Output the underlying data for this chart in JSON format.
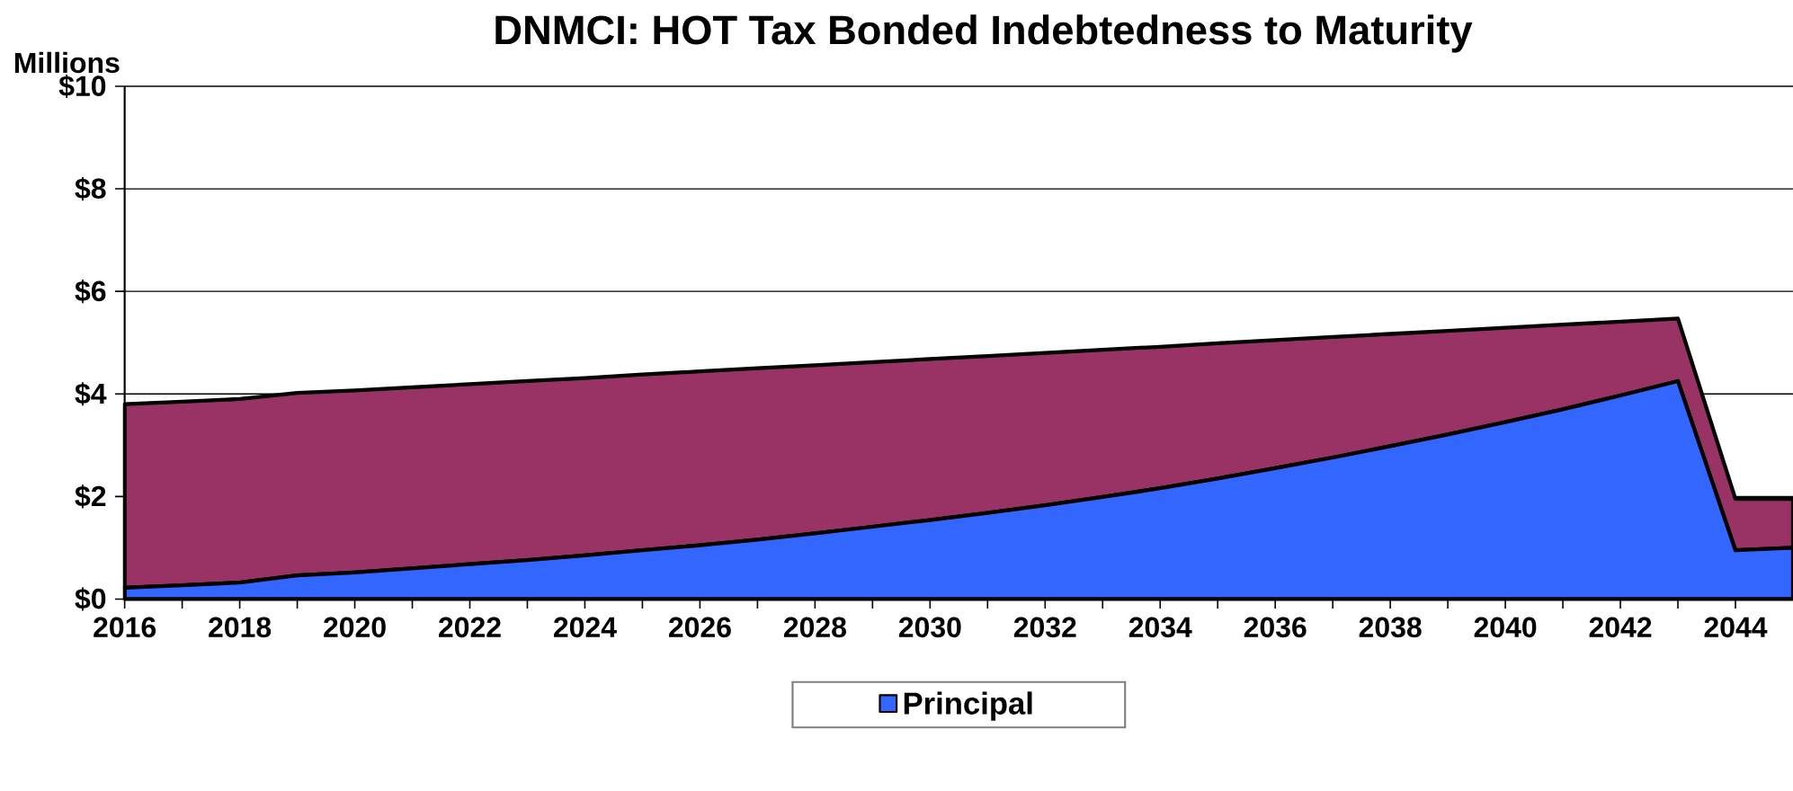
{
  "chart_data": {
    "type": "area",
    "title": "DNMCI: HOT Tax Bonded Indebtedness to Maturity",
    "ylabel": "Millions",
    "stacked": true,
    "x": [
      2016,
      2017,
      2018,
      2019,
      2020,
      2021,
      2022,
      2023,
      2024,
      2025,
      2026,
      2027,
      2028,
      2029,
      2030,
      2031,
      2032,
      2033,
      2034,
      2035,
      2036,
      2037,
      2038,
      2039,
      2040,
      2041,
      2042,
      2043,
      2044,
      2045
    ],
    "series": [
      {
        "name": "Principal",
        "color": "#3366ff",
        "values": [
          0.22,
          0.27,
          0.32,
          0.46,
          0.52,
          0.6,
          0.68,
          0.76,
          0.85,
          0.95,
          1.05,
          1.16,
          1.28,
          1.41,
          1.54,
          1.68,
          1.83,
          1.99,
          2.16,
          2.35,
          2.55,
          2.76,
          2.98,
          3.21,
          3.45,
          3.7,
          3.97,
          4.25,
          0.95,
          1.0
        ]
      },
      {
        "color": "#993366",
        "values": [
          3.58,
          3.58,
          3.58,
          3.56,
          3.55,
          3.53,
          3.51,
          3.49,
          3.46,
          3.43,
          3.39,
          3.34,
          3.28,
          3.21,
          3.14,
          3.06,
          2.97,
          2.87,
          2.76,
          2.64,
          2.5,
          2.35,
          2.19,
          2.02,
          1.84,
          1.65,
          1.44,
          1.22,
          1.0,
          0.95
        ]
      }
    ],
    "xlim": [
      2016,
      2045
    ],
    "xticks": [
      2016,
      2018,
      2020,
      2022,
      2024,
      2026,
      2028,
      2030,
      2032,
      2034,
      2036,
      2038,
      2040,
      2042,
      2044
    ],
    "ylim": [
      0,
      10
    ],
    "yticks": [
      {
        "value": 0,
        "label": "$0"
      },
      {
        "value": 2,
        "label": "$2"
      },
      {
        "value": 4,
        "label": "$4"
      },
      {
        "value": 6,
        "label": "$6"
      },
      {
        "value": 8,
        "label": "$8"
      },
      {
        "value": 10,
        "label": "$10"
      }
    ],
    "grid": "y",
    "legend": "bottom",
    "line_style": "solid",
    "marker": "none"
  }
}
